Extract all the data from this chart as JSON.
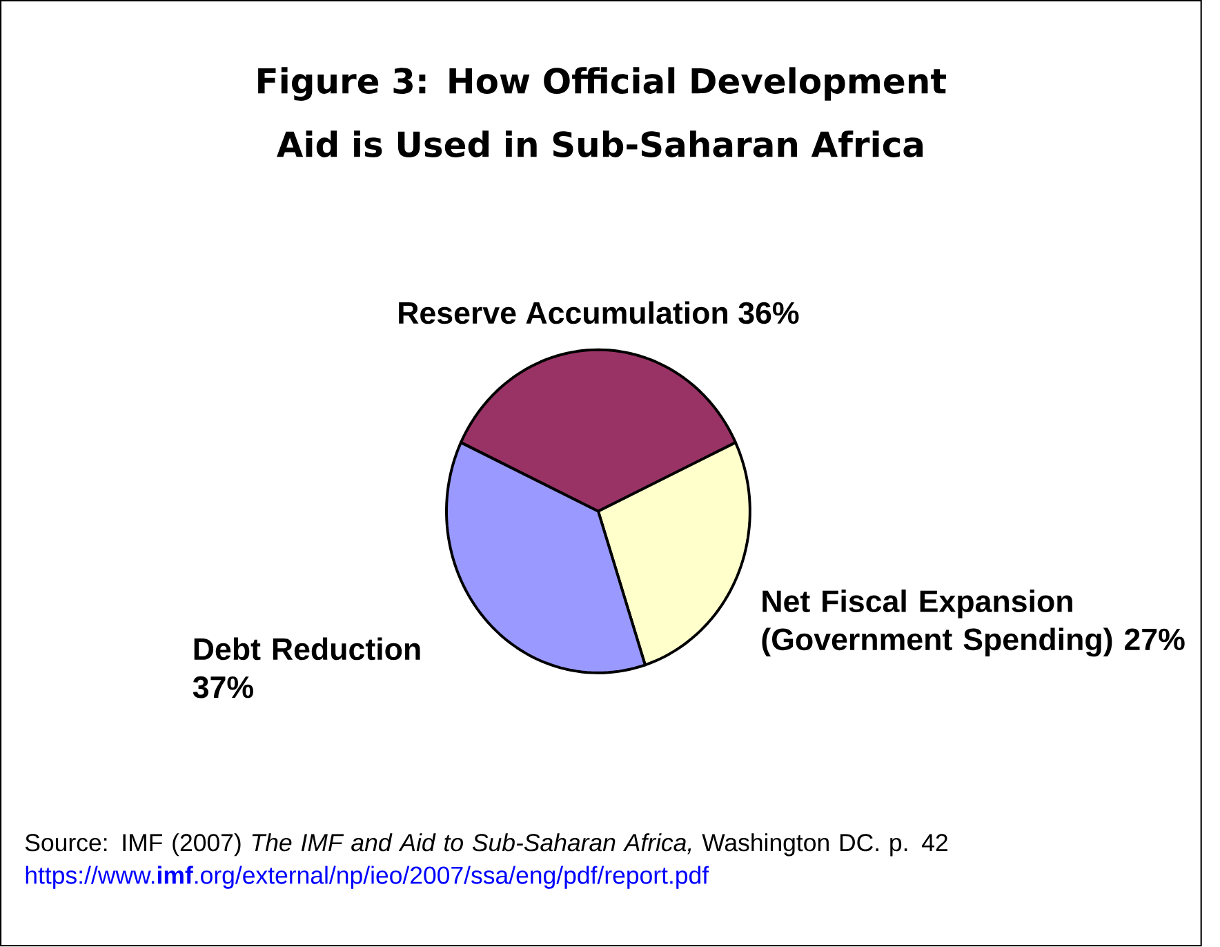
{
  "chart_data": {
    "type": "pie",
    "title": "Figure 3: How Official Development Aid is Used in Sub-Saharan Africa",
    "categories": [
      "Reserve Accumulation",
      "Net Fiscal Expansion (Government Spending)",
      "Debt Reduction"
    ],
    "values": [
      36,
      27,
      37
    ],
    "value_labels": [
      "36%",
      "27%",
      "37%"
    ],
    "colors": [
      "#993366",
      "#ffffcc",
      "#9999ff"
    ],
    "annotations": [
      "Source: IMF (2007) *The IMF and Aid to Sub-Saharan Africa,* Washington DC. p. 42",
      "https://www.**imf**.org/external/np/ieo/2007/ssa/eng/pdf/report.pdf"
    ]
  }
}
